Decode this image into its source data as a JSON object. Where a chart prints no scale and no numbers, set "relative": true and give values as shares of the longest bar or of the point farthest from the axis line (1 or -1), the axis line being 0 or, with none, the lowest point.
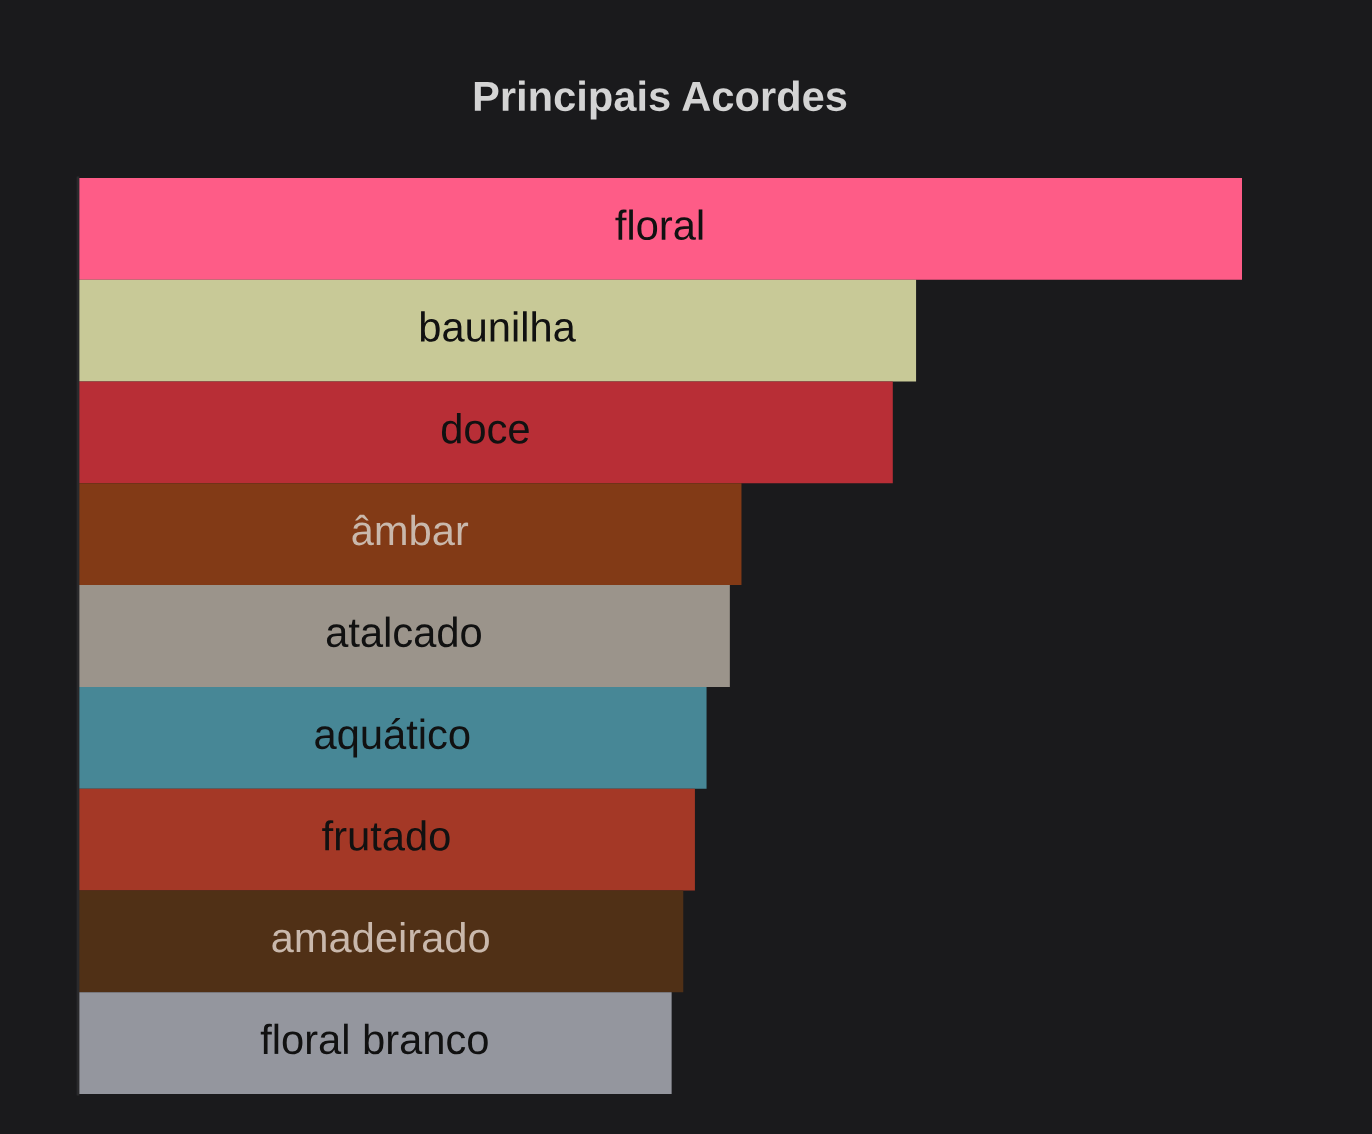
{
  "chart_data": {
    "type": "bar",
    "title": "Principais Acordes",
    "orientation": "horizontal",
    "relative": true,
    "categories": [
      "floral",
      "baunilha",
      "doce",
      "âmbar",
      "atalcado",
      "aquático",
      "frutado",
      "amadeirado",
      "floral branco"
    ],
    "values": [
      1,
      0.72,
      0.7,
      0.57,
      0.56,
      0.54,
      0.53,
      0.52,
      0.51
    ],
    "colors": [
      "#fe5c87",
      "#c8c997",
      "#b82e36",
      "#823a16",
      "#9b948b",
      "#478796",
      "#a43826",
      "#503016",
      "#94969e"
    ]
  }
}
